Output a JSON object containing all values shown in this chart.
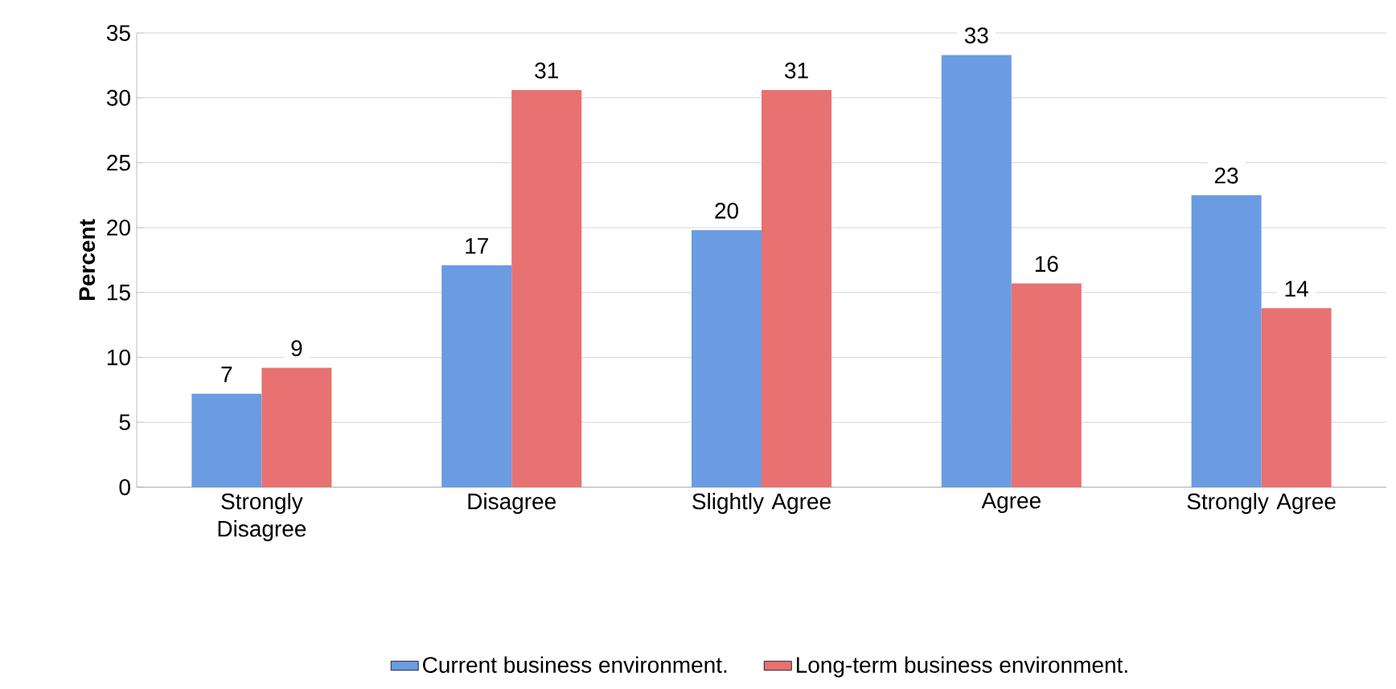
{
  "chart_data": {
    "type": "bar",
    "ylabel": "Percent",
    "categories": [
      "Strongly Disagree",
      "Disagree",
      "Slightly Agree",
      "Agree",
      "Strongly Agree"
    ],
    "series": [
      {
        "name": "Current business environment.",
        "color": "#6a9be3",
        "values": [
          7.2,
          17.1,
          19.8,
          33.3,
          22.5
        ],
        "value_labels": [
          "7",
          "17",
          "20",
          "33",
          "23"
        ]
      },
      {
        "name": "Long-term business environment.",
        "color": "#e87171",
        "values": [
          9.2,
          30.6,
          30.6,
          15.7,
          13.8
        ],
        "value_labels": [
          "9",
          "31",
          "31",
          "16",
          "14"
        ]
      }
    ],
    "ylim": [
      0,
      35
    ],
    "yticks": [
      0,
      5,
      10,
      15,
      20,
      25,
      30,
      35
    ],
    "grid": "y",
    "legend": "bottom"
  }
}
